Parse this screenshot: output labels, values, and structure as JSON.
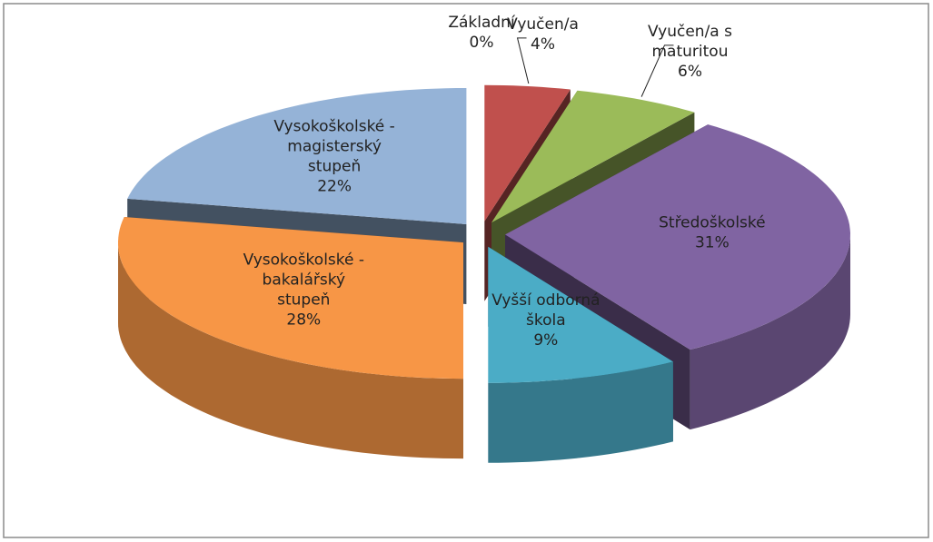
{
  "chart_data": {
    "type": "pie3d",
    "categories": [
      "Základní",
      "Vyučen/a",
      "Vyučen/a s maturitou",
      "Středoškolské",
      "Vyšší odborná škola",
      "Vysokoškolské - bakalářský stupeň",
      "Vysokoškolské - magisterský stupeň"
    ],
    "values": [
      0,
      4,
      6,
      31,
      9,
      28,
      22
    ],
    "value_labels": [
      "0%",
      "4%",
      "6%",
      "31%",
      "9%",
      "28%",
      "22%"
    ],
    "colors": [
      "#4f81bd",
      "#c0504d",
      "#9bbb59",
      "#8064a2",
      "#4bacc6",
      "#f79646",
      "#95b3d7"
    ]
  }
}
